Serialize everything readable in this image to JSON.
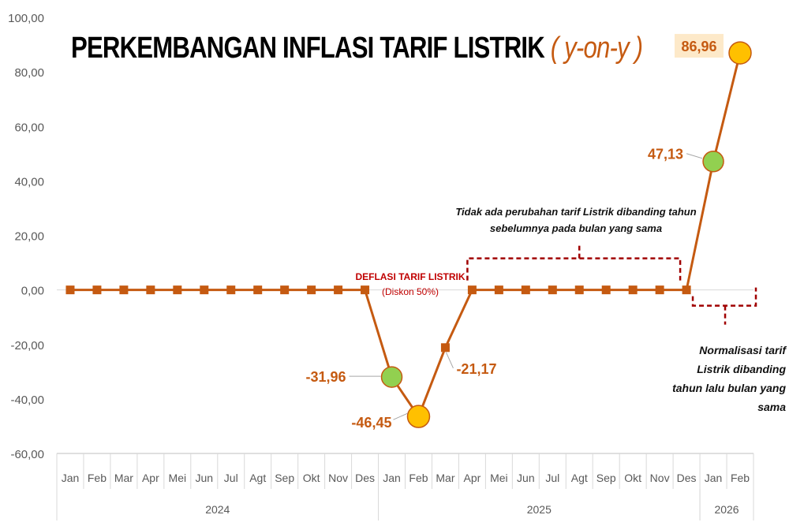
{
  "title": {
    "main": "PERKEMBANGAN INFLASI TARIF LISTRIK",
    "accent": "( y-on-y )"
  },
  "annotations": {
    "no_change": "Tidak ada perubahan tarif Listrik dibanding tahun sebelumnya pada bulan yang sama",
    "normalization": "Normalisasi tarif Listrik dibanding tahun lalu bulan yang sama",
    "deflation": "DEFLASI TARIF LISTRIK",
    "discount": "(Diskon 50%)"
  },
  "colors": {
    "line": "#C55A11",
    "marker": "#C55A11",
    "green": "#92D050",
    "yellow": "#FFC000",
    "bracket": "#A00000",
    "label_box": "#FDE9C9"
  },
  "chart_data": {
    "type": "line",
    "title": "PERKEMBANGAN INFLASI TARIF LISTRIK ( y-on-y )",
    "xlabel": "",
    "ylabel": "",
    "ylim": [
      -60,
      100
    ],
    "yticks": [
      -60,
      -40,
      -20,
      0,
      20,
      40,
      60,
      80,
      100
    ],
    "ytick_labels": [
      "-60,00",
      "-40,00",
      "-20,00",
      "0,00",
      "20,00",
      "40,00",
      "60,00",
      "80,00",
      "100,00"
    ],
    "grid": false,
    "categories": [
      "Jan",
      "Feb",
      "Mar",
      "Apr",
      "Mei",
      "Jun",
      "Jul",
      "Agt",
      "Sep",
      "Okt",
      "Nov",
      "Des",
      "Jan",
      "Feb",
      "Mar",
      "Apr",
      "Mei",
      "Jun",
      "Jul",
      "Agt",
      "Sep",
      "Okt",
      "Nov",
      "Des",
      "Jan",
      "Feb"
    ],
    "year_groups": [
      {
        "label": "2024",
        "count": 12
      },
      {
        "label": "2025",
        "count": 12
      },
      {
        "label": "2026",
        "count": 2
      }
    ],
    "values": [
      0,
      0,
      0,
      0,
      0,
      0,
      0,
      0,
      0,
      0,
      0,
      0,
      -31.96,
      -46.45,
      -21.17,
      0,
      0,
      0,
      0,
      0,
      0,
      0,
      0,
      0,
      47.13,
      86.96
    ],
    "labels": [
      {
        "index": 12,
        "text": "-31,96",
        "marker": "green"
      },
      {
        "index": 13,
        "text": "-46,45",
        "marker": "yellow"
      },
      {
        "index": 14,
        "text": "-21,17",
        "marker": "square"
      },
      {
        "index": 24,
        "text": "47,13",
        "marker": "green"
      },
      {
        "index": 25,
        "text": "86,96",
        "marker": "yellow"
      }
    ]
  }
}
